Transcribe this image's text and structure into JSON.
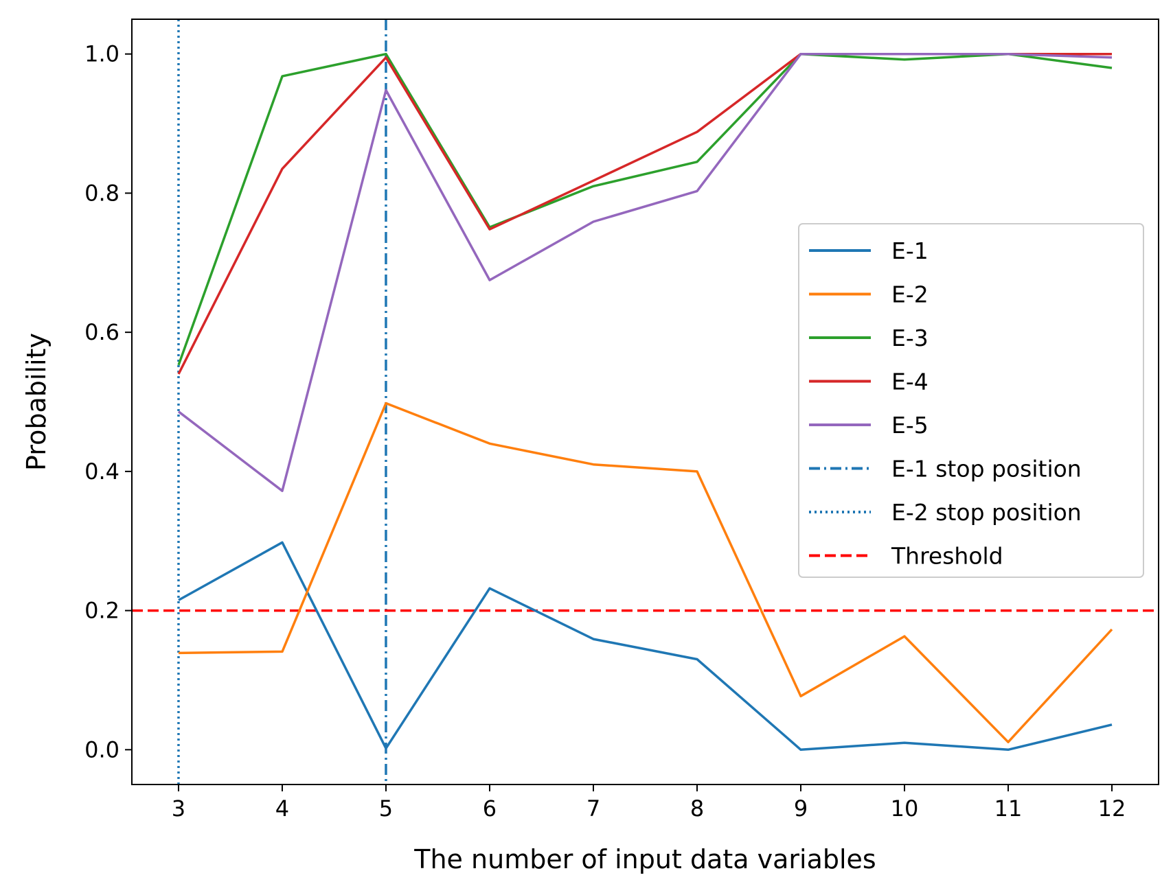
{
  "chart_data": {
    "type": "line",
    "title": "",
    "xlabel": "The number of input data variables",
    "ylabel": "Probability",
    "x": [
      3,
      4,
      5,
      6,
      7,
      8,
      9,
      10,
      11,
      12
    ],
    "xlim": [
      2.55,
      12.45
    ],
    "ylim": [
      -0.05,
      1.05
    ],
    "xticks": [
      "3",
      "4",
      "5",
      "6",
      "7",
      "8",
      "9",
      "10",
      "11",
      "12"
    ],
    "yticks": [
      "0.0",
      "0.2",
      "0.4",
      "0.6",
      "0.8",
      "1.0"
    ],
    "grid": false,
    "legend_position": "center-right",
    "series": [
      {
        "name": "E-1",
        "color": "#1f77b4",
        "values": [
          0.215,
          0.298,
          0.002,
          0.232,
          0.159,
          0.13,
          0.0,
          0.01,
          0.0,
          0.036
        ]
      },
      {
        "name": "E-2",
        "color": "#ff7f0e",
        "values": [
          0.139,
          0.141,
          0.498,
          0.44,
          0.41,
          0.4,
          0.077,
          0.163,
          0.011,
          0.173
        ]
      },
      {
        "name": "E-3",
        "color": "#2ca02c",
        "values": [
          0.553,
          0.968,
          1.0,
          0.751,
          0.81,
          0.845,
          1.0,
          0.992,
          1.0,
          0.98
        ]
      },
      {
        "name": "E-4",
        "color": "#d62728",
        "values": [
          0.54,
          0.835,
          0.995,
          0.748,
          0.818,
          0.888,
          1.0,
          1.0,
          1.0,
          1.0
        ]
      },
      {
        "name": "E-5",
        "color": "#9467bd",
        "values": [
          0.486,
          0.372,
          0.948,
          0.675,
          0.759,
          0.803,
          1.0,
          1.0,
          1.0,
          0.995
        ]
      }
    ],
    "vlines": [
      {
        "name": "E-1 stop position",
        "x": 5,
        "color": "#1f77b4",
        "style": "dashdot"
      },
      {
        "name": "E-2 stop position",
        "x": 3,
        "color": "#1f77b4",
        "style": "dotted"
      }
    ],
    "hlines": [
      {
        "name": "Threshold",
        "y": 0.2,
        "color": "#ff0000",
        "style": "dashed"
      }
    ]
  }
}
